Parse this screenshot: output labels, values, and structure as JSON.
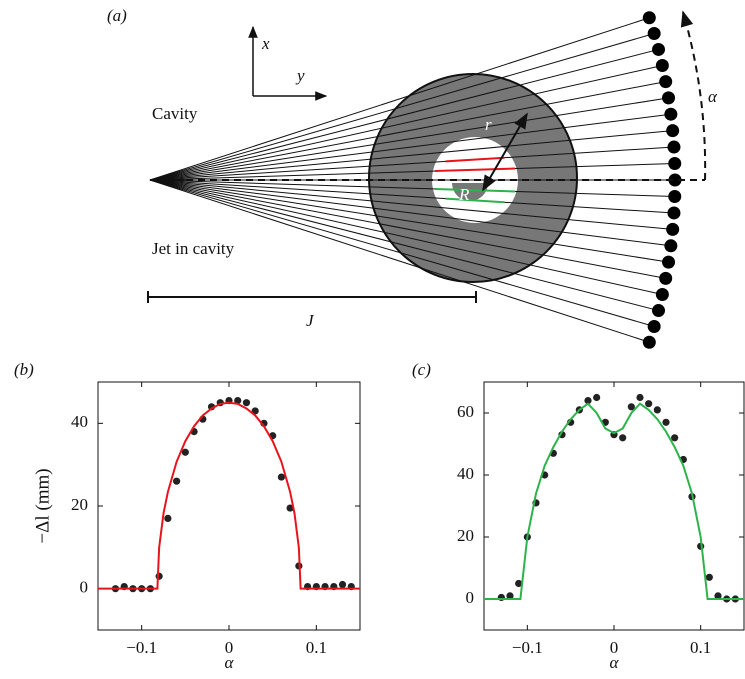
{
  "diagram": {
    "panel": "(a)",
    "axis_x": "x",
    "axis_y": "y",
    "cavity": "Cavity",
    "jet": "Jet in cavity",
    "r": "r",
    "R": "R",
    "alpha": "α",
    "J": "J"
  },
  "chart_data": [
    {
      "type": "scatter",
      "panel": "(b)",
      "y_label": "−Δl (mm)",
      "x_label": "α",
      "xlim": [
        -0.15,
        0.15
      ],
      "ylim": [
        -10,
        50
      ],
      "xticks": [
        {
          "value": -0.1,
          "label": "−0.1"
        },
        0,
        0.1
      ],
      "yticks": [
        0,
        20,
        40
      ],
      "series": [
        {
          "style": "points",
          "color": "#222222",
          "x": [
            -0.13,
            -0.12,
            -0.11,
            -0.1,
            -0.09,
            -0.08,
            -0.07,
            -0.06,
            -0.05,
            -0.04,
            -0.03,
            -0.02,
            -0.01,
            0,
            0.01,
            0.02,
            0.03,
            0.04,
            0.05,
            0.06,
            0.07,
            0.08,
            0.09,
            0.1,
            0.11,
            0.12,
            0.13,
            0.14
          ],
          "values": [
            0,
            0.5,
            0,
            0,
            0,
            3,
            17,
            26,
            33,
            38,
            41,
            44,
            45,
            45.5,
            45.5,
            45,
            43,
            40,
            37,
            27,
            19.5,
            5.5,
            0.5,
            0.5,
            0.5,
            0.5,
            1,
            0.5
          ]
        },
        {
          "style": "line",
          "color": "#e8141b",
          "x": [
            -0.15,
            -0.082,
            -0.08,
            -0.075,
            -0.07,
            -0.06,
            -0.05,
            -0.04,
            -0.03,
            -0.02,
            -0.01,
            0,
            0.01,
            0.02,
            0.03,
            0.04,
            0.05,
            0.06,
            0.07,
            0.075,
            0.08,
            0.082,
            0.15
          ],
          "values": [
            0,
            0,
            9.9,
            18.2,
            23.4,
            30.7,
            35.7,
            39.3,
            41.9,
            43.6,
            44.7,
            45,
            44.7,
            43.6,
            41.9,
            39.3,
            35.7,
            30.7,
            23.4,
            18.2,
            9.9,
            0,
            0
          ]
        }
      ]
    },
    {
      "type": "scatter",
      "panel": "(c)",
      "x_label": "α",
      "xlim": [
        -0.15,
        0.15
      ],
      "ylim": [
        -10,
        70
      ],
      "xticks": [
        {
          "value": -0.1,
          "label": "−0.1"
        },
        0,
        0.1
      ],
      "yticks": [
        0,
        20,
        40,
        60
      ],
      "series": [
        {
          "style": "points",
          "color": "#222222",
          "x": [
            -0.13,
            -0.12,
            -0.11,
            -0.1,
            -0.09,
            -0.08,
            -0.07,
            -0.06,
            -0.05,
            -0.04,
            -0.03,
            -0.02,
            -0.01,
            0,
            0.01,
            0.02,
            0.03,
            0.04,
            0.05,
            0.06,
            0.07,
            0.08,
            0.09,
            0.1,
            0.11,
            0.12,
            0.13,
            0.14
          ],
          "values": [
            0.5,
            1,
            5,
            20,
            31,
            40,
            47,
            53,
            57,
            61,
            64,
            65,
            57,
            53,
            52,
            62,
            65,
            63,
            61,
            57,
            52,
            45,
            33,
            17,
            7,
            1,
            0,
            0
          ]
        },
        {
          "style": "line",
          "color": "#2db34a",
          "x": [
            -0.15,
            -0.108,
            -0.1,
            -0.09,
            -0.08,
            -0.07,
            -0.06,
            -0.05,
            -0.04,
            -0.03,
            -0.02,
            -0.01,
            0,
            0.01,
            0.02,
            0.03,
            0.04,
            0.05,
            0.06,
            0.07,
            0.08,
            0.09,
            0.1,
            0.108,
            0.15
          ],
          "values": [
            0,
            0,
            20,
            34,
            43,
            49,
            54,
            58,
            61,
            63,
            60,
            55,
            53.5,
            55,
            60,
            63,
            61,
            58,
            54,
            49,
            43,
            34,
            20,
            0,
            0
          ]
        }
      ]
    }
  ]
}
